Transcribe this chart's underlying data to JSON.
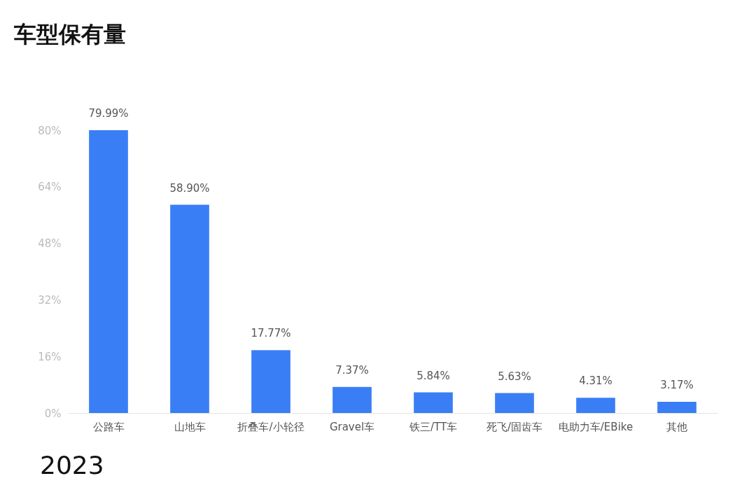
{
  "chart_data": {
    "type": "bar",
    "title": "车型保有量",
    "categories": [
      "公路车",
      "山地车",
      "折叠车/小轮径",
      "Gravel车",
      "铁三/TT车",
      "死飞/固齿车",
      "电助力车/EBike",
      "其他"
    ],
    "values": [
      79.99,
      58.9,
      17.77,
      7.37,
      5.84,
      5.63,
      4.31,
      3.17
    ],
    "value_labels": [
      "79.99%",
      "58.90%",
      "17.77%",
      "7.37%",
      "5.84%",
      "5.63%",
      "4.31%",
      "3.17%"
    ],
    "color": "#3a7ef6",
    "ylim": [
      0,
      80
    ],
    "yticks": [
      {
        "value": 0,
        "label": "0%"
      },
      {
        "value": 16,
        "label": "16%"
      },
      {
        "value": 32,
        "label": "32%"
      },
      {
        "value": 48,
        "label": "48%"
      },
      {
        "value": 64,
        "label": "64%"
      },
      {
        "value": 80,
        "label": "80%"
      }
    ],
    "annotations": [
      "2023"
    ]
  }
}
